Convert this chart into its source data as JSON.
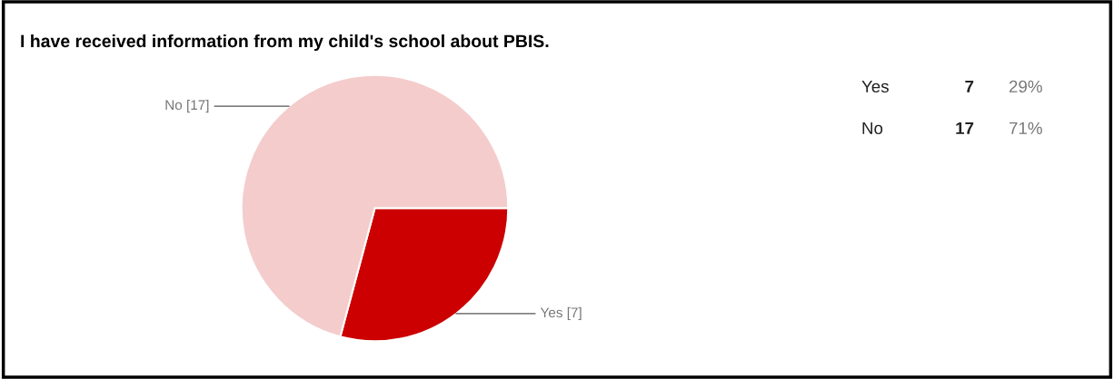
{
  "chart_data": {
    "type": "pie",
    "title": "I have received information from my child's school about PBIS.",
    "categories": [
      "Yes [7]",
      "No [17]"
    ],
    "values": [
      7,
      17
    ],
    "colors": [
      "#cc0000",
      "#f4cccc"
    ],
    "annotations": [
      "Yes",
      "7",
      "29%",
      "No",
      "17",
      "71%"
    ]
  }
}
